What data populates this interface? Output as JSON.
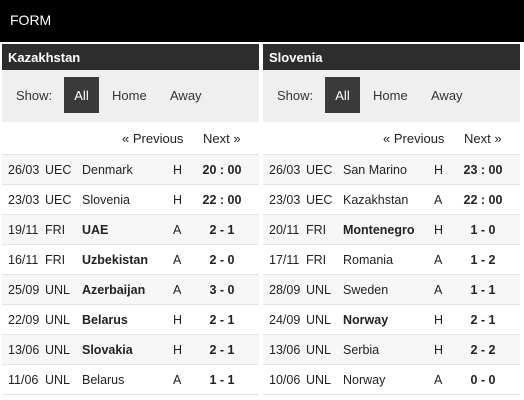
{
  "header": {
    "title": "FORM"
  },
  "show_label": "Show:",
  "filters": {
    "all": "All",
    "home": "Home",
    "away": "Away"
  },
  "pager": {
    "previous": "« Previous",
    "next": "Next »"
  },
  "left": {
    "team": "Kazakhstan",
    "matches": [
      {
        "date": "26/03",
        "comp": "UEC",
        "opponent": "Denmark",
        "ha": "H",
        "score": "20 : 00",
        "bold": false
      },
      {
        "date": "23/03",
        "comp": "UEC",
        "opponent": "Slovenia",
        "ha": "H",
        "score": "22 : 00",
        "bold": false
      },
      {
        "date": "19/11",
        "comp": "FRI",
        "opponent": "UAE",
        "ha": "A",
        "score": "2 - 1",
        "bold": true
      },
      {
        "date": "16/11",
        "comp": "FRI",
        "opponent": "Uzbekistan",
        "ha": "A",
        "score": "2 - 0",
        "bold": true
      },
      {
        "date": "25/09",
        "comp": "UNL",
        "opponent": "Azerbaijan",
        "ha": "A",
        "score": "3 - 0",
        "bold": true
      },
      {
        "date": "22/09",
        "comp": "UNL",
        "opponent": "Belarus",
        "ha": "H",
        "score": "2 - 1",
        "bold": true
      },
      {
        "date": "13/06",
        "comp": "UNL",
        "opponent": "Slovakia",
        "ha": "H",
        "score": "2 - 1",
        "bold": true
      },
      {
        "date": "11/06",
        "comp": "UNL",
        "opponent": "Belarus",
        "ha": "A",
        "score": "1 - 1",
        "bold": false
      }
    ]
  },
  "right": {
    "team": "Slovenia",
    "matches": [
      {
        "date": "26/03",
        "comp": "UEC",
        "opponent": "San Marino",
        "ha": "H",
        "score": "23 : 00",
        "bold": false
      },
      {
        "date": "23/03",
        "comp": "UEC",
        "opponent": "Kazakhstan",
        "ha": "A",
        "score": "22 : 00",
        "bold": false
      },
      {
        "date": "20/11",
        "comp": "FRI",
        "opponent": "Montenegro",
        "ha": "H",
        "score": "1 - 0",
        "bold": true
      },
      {
        "date": "17/11",
        "comp": "FRI",
        "opponent": "Romania",
        "ha": "A",
        "score": "1 - 2",
        "bold": false
      },
      {
        "date": "28/09",
        "comp": "UNL",
        "opponent": "Sweden",
        "ha": "A",
        "score": "1 - 1",
        "bold": false
      },
      {
        "date": "24/09",
        "comp": "UNL",
        "opponent": "Norway",
        "ha": "H",
        "score": "2 - 1",
        "bold": true
      },
      {
        "date": "13/06",
        "comp": "UNL",
        "opponent": "Serbia",
        "ha": "H",
        "score": "2 - 2",
        "bold": false
      },
      {
        "date": "10/06",
        "comp": "UNL",
        "opponent": "Norway",
        "ha": "A",
        "score": "0 - 0",
        "bold": false
      }
    ]
  }
}
